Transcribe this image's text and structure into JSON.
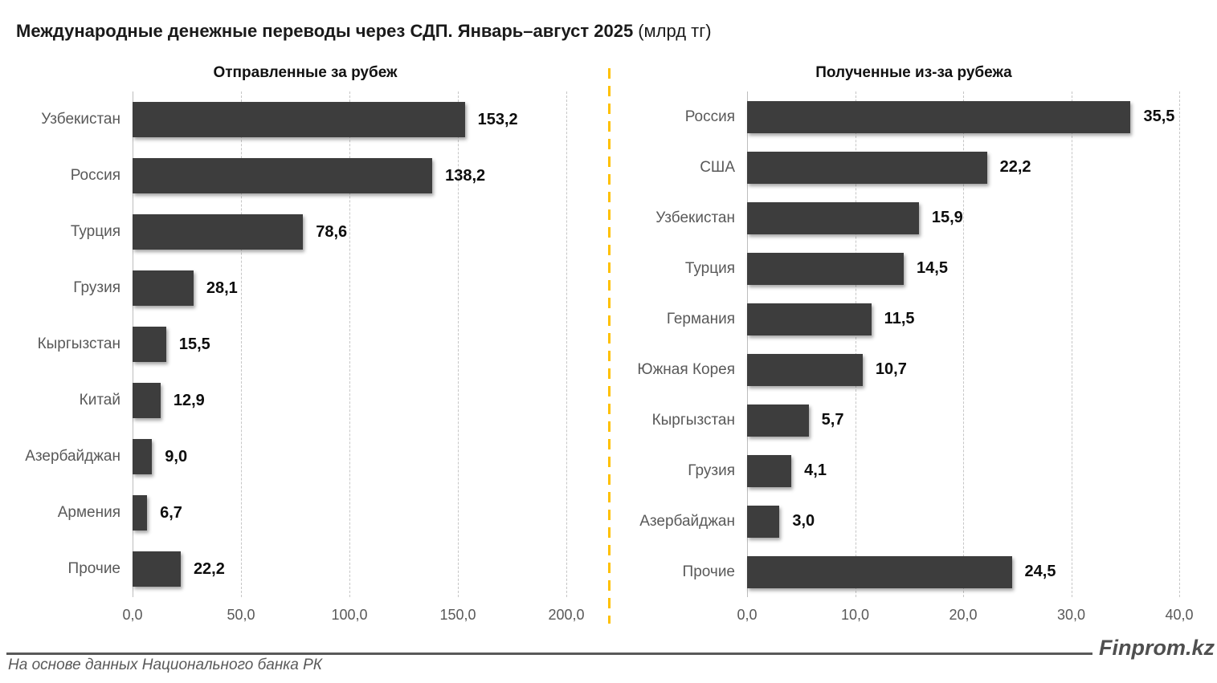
{
  "title": {
    "main": "Международные денежные переводы через СДП. Январь–август 2025",
    "unit": "(млрд тг)"
  },
  "footer": {
    "source": "На основе данных Национального банка РК",
    "brand": "Finprom.kz"
  },
  "colors": {
    "bar": "#3d3d3d",
    "divider": "#ffc000",
    "gridline": "#c6c6c6",
    "axis_line": "#bdbdbd",
    "category_label": "#595959",
    "value_label": "#0d0d0d",
    "footer_rule": "#595959"
  },
  "chart_data": [
    {
      "type": "bar",
      "orientation": "horizontal",
      "title": "Отправленные за рубеж",
      "unit": "млрд тг",
      "categories": [
        "Узбекистан",
        "Россия",
        "Турция",
        "Грузия",
        "Кыргызстан",
        "Китай",
        "Азербайджан",
        "Армения",
        "Прочие"
      ],
      "values": [
        153.2,
        138.2,
        78.6,
        28.1,
        15.5,
        12.9,
        9.0,
        6.7,
        22.2
      ],
      "value_labels": [
        "153,2",
        "138,2",
        "78,6",
        "28,1",
        "15,5",
        "12,9",
        "9,0",
        "6,7",
        "22,2"
      ],
      "xlim": [
        0,
        200
      ],
      "xtick_values": [
        0,
        50,
        100,
        150,
        200
      ],
      "xtick_labels": [
        "0,0",
        "50,0",
        "100,0",
        "150,0",
        "200,0"
      ],
      "grid": true,
      "legend": false
    },
    {
      "type": "bar",
      "orientation": "horizontal",
      "title": "Полученные из-за рубежа",
      "unit": "млрд тг",
      "categories": [
        "Россия",
        "США",
        "Узбекистан",
        "Турция",
        "Германия",
        "Южная Корея",
        "Кыргызстан",
        "Грузия",
        "Азербайджан",
        "Прочие"
      ],
      "values": [
        35.5,
        22.2,
        15.9,
        14.5,
        11.5,
        10.7,
        5.7,
        4.1,
        3.0,
        24.5
      ],
      "value_labels": [
        "35,5",
        "22,2",
        "15,9",
        "14,5",
        "11,5",
        "10,7",
        "5,7",
        "4,1",
        "3,0",
        "24,5"
      ],
      "xlim": [
        0,
        40
      ],
      "xtick_values": [
        0,
        10,
        20,
        30,
        40
      ],
      "xtick_labels": [
        "0,0",
        "10,0",
        "20,0",
        "30,0",
        "40,0"
      ],
      "grid": true,
      "legend": false
    }
  ]
}
